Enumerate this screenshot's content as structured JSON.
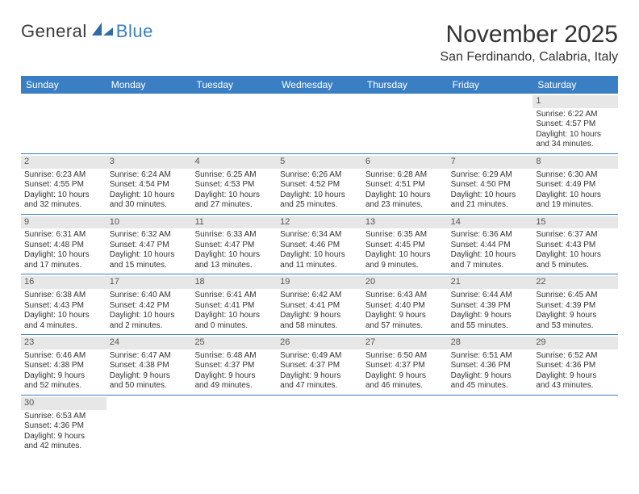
{
  "logo": {
    "word1": "General",
    "word2": "Blue"
  },
  "title": "November 2025",
  "subtitle": "San Ferdinando, Calabria, Italy",
  "header_bg": "#3a7fc4",
  "daynum_bg": "#e7e7e7",
  "days_of_week": [
    "Sunday",
    "Monday",
    "Tuesday",
    "Wednesday",
    "Thursday",
    "Friday",
    "Saturday"
  ],
  "weeks": [
    [
      null,
      null,
      null,
      null,
      null,
      null,
      {
        "n": "1",
        "sunrise": "Sunrise: 6:22 AM",
        "sunset": "Sunset: 4:57 PM",
        "daylight1": "Daylight: 10 hours",
        "daylight2": "and 34 minutes."
      }
    ],
    [
      {
        "n": "2",
        "sunrise": "Sunrise: 6:23 AM",
        "sunset": "Sunset: 4:55 PM",
        "daylight1": "Daylight: 10 hours",
        "daylight2": "and 32 minutes."
      },
      {
        "n": "3",
        "sunrise": "Sunrise: 6:24 AM",
        "sunset": "Sunset: 4:54 PM",
        "daylight1": "Daylight: 10 hours",
        "daylight2": "and 30 minutes."
      },
      {
        "n": "4",
        "sunrise": "Sunrise: 6:25 AM",
        "sunset": "Sunset: 4:53 PM",
        "daylight1": "Daylight: 10 hours",
        "daylight2": "and 27 minutes."
      },
      {
        "n": "5",
        "sunrise": "Sunrise: 6:26 AM",
        "sunset": "Sunset: 4:52 PM",
        "daylight1": "Daylight: 10 hours",
        "daylight2": "and 25 minutes."
      },
      {
        "n": "6",
        "sunrise": "Sunrise: 6:28 AM",
        "sunset": "Sunset: 4:51 PM",
        "daylight1": "Daylight: 10 hours",
        "daylight2": "and 23 minutes."
      },
      {
        "n": "7",
        "sunrise": "Sunrise: 6:29 AM",
        "sunset": "Sunset: 4:50 PM",
        "daylight1": "Daylight: 10 hours",
        "daylight2": "and 21 minutes."
      },
      {
        "n": "8",
        "sunrise": "Sunrise: 6:30 AM",
        "sunset": "Sunset: 4:49 PM",
        "daylight1": "Daylight: 10 hours",
        "daylight2": "and 19 minutes."
      }
    ],
    [
      {
        "n": "9",
        "sunrise": "Sunrise: 6:31 AM",
        "sunset": "Sunset: 4:48 PM",
        "daylight1": "Daylight: 10 hours",
        "daylight2": "and 17 minutes."
      },
      {
        "n": "10",
        "sunrise": "Sunrise: 6:32 AM",
        "sunset": "Sunset: 4:47 PM",
        "daylight1": "Daylight: 10 hours",
        "daylight2": "and 15 minutes."
      },
      {
        "n": "11",
        "sunrise": "Sunrise: 6:33 AM",
        "sunset": "Sunset: 4:47 PM",
        "daylight1": "Daylight: 10 hours",
        "daylight2": "and 13 minutes."
      },
      {
        "n": "12",
        "sunrise": "Sunrise: 6:34 AM",
        "sunset": "Sunset: 4:46 PM",
        "daylight1": "Daylight: 10 hours",
        "daylight2": "and 11 minutes."
      },
      {
        "n": "13",
        "sunrise": "Sunrise: 6:35 AM",
        "sunset": "Sunset: 4:45 PM",
        "daylight1": "Daylight: 10 hours",
        "daylight2": "and 9 minutes."
      },
      {
        "n": "14",
        "sunrise": "Sunrise: 6:36 AM",
        "sunset": "Sunset: 4:44 PM",
        "daylight1": "Daylight: 10 hours",
        "daylight2": "and 7 minutes."
      },
      {
        "n": "15",
        "sunrise": "Sunrise: 6:37 AM",
        "sunset": "Sunset: 4:43 PM",
        "daylight1": "Daylight: 10 hours",
        "daylight2": "and 5 minutes."
      }
    ],
    [
      {
        "n": "16",
        "sunrise": "Sunrise: 6:38 AM",
        "sunset": "Sunset: 4:43 PM",
        "daylight1": "Daylight: 10 hours",
        "daylight2": "and 4 minutes."
      },
      {
        "n": "17",
        "sunrise": "Sunrise: 6:40 AM",
        "sunset": "Sunset: 4:42 PM",
        "daylight1": "Daylight: 10 hours",
        "daylight2": "and 2 minutes."
      },
      {
        "n": "18",
        "sunrise": "Sunrise: 6:41 AM",
        "sunset": "Sunset: 4:41 PM",
        "daylight1": "Daylight: 10 hours",
        "daylight2": "and 0 minutes."
      },
      {
        "n": "19",
        "sunrise": "Sunrise: 6:42 AM",
        "sunset": "Sunset: 4:41 PM",
        "daylight1": "Daylight: 9 hours",
        "daylight2": "and 58 minutes."
      },
      {
        "n": "20",
        "sunrise": "Sunrise: 6:43 AM",
        "sunset": "Sunset: 4:40 PM",
        "daylight1": "Daylight: 9 hours",
        "daylight2": "and 57 minutes."
      },
      {
        "n": "21",
        "sunrise": "Sunrise: 6:44 AM",
        "sunset": "Sunset: 4:39 PM",
        "daylight1": "Daylight: 9 hours",
        "daylight2": "and 55 minutes."
      },
      {
        "n": "22",
        "sunrise": "Sunrise: 6:45 AM",
        "sunset": "Sunset: 4:39 PM",
        "daylight1": "Daylight: 9 hours",
        "daylight2": "and 53 minutes."
      }
    ],
    [
      {
        "n": "23",
        "sunrise": "Sunrise: 6:46 AM",
        "sunset": "Sunset: 4:38 PM",
        "daylight1": "Daylight: 9 hours",
        "daylight2": "and 52 minutes."
      },
      {
        "n": "24",
        "sunrise": "Sunrise: 6:47 AM",
        "sunset": "Sunset: 4:38 PM",
        "daylight1": "Daylight: 9 hours",
        "daylight2": "and 50 minutes."
      },
      {
        "n": "25",
        "sunrise": "Sunrise: 6:48 AM",
        "sunset": "Sunset: 4:37 PM",
        "daylight1": "Daylight: 9 hours",
        "daylight2": "and 49 minutes."
      },
      {
        "n": "26",
        "sunrise": "Sunrise: 6:49 AM",
        "sunset": "Sunset: 4:37 PM",
        "daylight1": "Daylight: 9 hours",
        "daylight2": "and 47 minutes."
      },
      {
        "n": "27",
        "sunrise": "Sunrise: 6:50 AM",
        "sunset": "Sunset: 4:37 PM",
        "daylight1": "Daylight: 9 hours",
        "daylight2": "and 46 minutes."
      },
      {
        "n": "28",
        "sunrise": "Sunrise: 6:51 AM",
        "sunset": "Sunset: 4:36 PM",
        "daylight1": "Daylight: 9 hours",
        "daylight2": "and 45 minutes."
      },
      {
        "n": "29",
        "sunrise": "Sunrise: 6:52 AM",
        "sunset": "Sunset: 4:36 PM",
        "daylight1": "Daylight: 9 hours",
        "daylight2": "and 43 minutes."
      }
    ],
    [
      {
        "n": "30",
        "sunrise": "Sunrise: 6:53 AM",
        "sunset": "Sunset: 4:36 PM",
        "daylight1": "Daylight: 9 hours",
        "daylight2": "and 42 minutes."
      },
      null,
      null,
      null,
      null,
      null,
      null
    ]
  ]
}
